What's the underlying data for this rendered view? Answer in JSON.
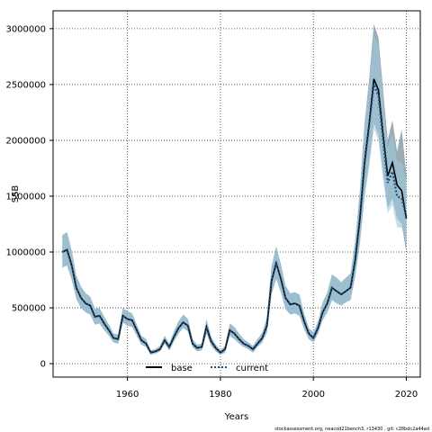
{
  "chart_data": {
    "type": "area",
    "title": "",
    "xlabel": "Years",
    "ylabel": "SSB",
    "xlim": [
      1944,
      2023
    ],
    "ylim": [
      -120000,
      3160000
    ],
    "x_ticks": [
      1960,
      1980,
      2000,
      2020
    ],
    "y_ticks": [
      0,
      500000,
      1000000,
      1500000,
      2000000,
      2500000,
      3000000
    ],
    "grid": true,
    "legend_position": "bottom-center",
    "colors": {
      "band_base": "#8a9ea8",
      "band_current": "#9ecae1",
      "line_base": "#000000",
      "line_current": "#1f4e79"
    },
    "series": [
      {
        "name": "base",
        "style": "solid",
        "x": [
          1946,
          1947,
          1948,
          1949,
          1950,
          1951,
          1952,
          1953,
          1954,
          1955,
          1956,
          1957,
          1958,
          1959,
          1960,
          1961,
          1962,
          1963,
          1964,
          1965,
          1966,
          1967,
          1968,
          1969,
          1970,
          1971,
          1972,
          1973,
          1974,
          1975,
          1976,
          1977,
          1978,
          1979,
          1980,
          1981,
          1982,
          1983,
          1984,
          1985,
          1986,
          1987,
          1988,
          1989,
          1990,
          1991,
          1992,
          1993,
          1994,
          1995,
          1996,
          1997,
          1998,
          1999,
          2000,
          2001,
          2002,
          2003,
          2004,
          2005,
          2006,
          2007,
          2008,
          2009,
          2010,
          2011,
          2012,
          2013,
          2014,
          2015,
          2016,
          2017,
          2018,
          2019,
          2020
        ],
        "values": [
          1000000,
          1020000,
          880000,
          680000,
          590000,
          540000,
          520000,
          420000,
          430000,
          360000,
          300000,
          230000,
          220000,
          430000,
          400000,
          390000,
          300000,
          210000,
          180000,
          100000,
          110000,
          130000,
          210000,
          150000,
          240000,
          320000,
          370000,
          340000,
          180000,
          140000,
          150000,
          330000,
          200000,
          140000,
          100000,
          130000,
          300000,
          270000,
          220000,
          180000,
          160000,
          130000,
          180000,
          230000,
          340000,
          740000,
          900000,
          760000,
          590000,
          530000,
          540000,
          520000,
          380000,
          270000,
          230000,
          320000,
          460000,
          540000,
          680000,
          650000,
          620000,
          650000,
          680000,
          930000,
          1300000,
          1800000,
          2150000,
          2550000,
          2450000,
          2050000,
          1680000,
          1800000,
          1600000,
          1550000,
          1300000
        ],
        "lower": [
          860000,
          880000,
          750000,
          580000,
          500000,
          460000,
          440000,
          350000,
          360000,
          300000,
          250000,
          190000,
          180000,
          370000,
          340000,
          330000,
          250000,
          170000,
          150000,
          80000,
          90000,
          110000,
          180000,
          120000,
          200000,
          270000,
          320000,
          290000,
          150000,
          110000,
          120000,
          270000,
          160000,
          110000,
          80000,
          100000,
          250000,
          220000,
          180000,
          150000,
          130000,
          100000,
          150000,
          190000,
          280000,
          620000,
          760000,
          640000,
          490000,
          440000,
          450000,
          430000,
          310000,
          220000,
          190000,
          270000,
          390000,
          460000,
          570000,
          540000,
          520000,
          550000,
          570000,
          780000,
          1080000,
          1500000,
          1800000,
          2150000,
          2050000,
          1700000,
          1390000,
          1480000,
          1300000,
          1250000,
          1000000
        ],
        "upper": [
          1150000,
          1180000,
          1010000,
          790000,
          690000,
          630000,
          600000,
          490000,
          500000,
          420000,
          350000,
          270000,
          260000,
          500000,
          470000,
          450000,
          350000,
          250000,
          220000,
          120000,
          130000,
          160000,
          250000,
          180000,
          290000,
          380000,
          440000,
          400000,
          220000,
          170000,
          180000,
          400000,
          240000,
          170000,
          120000,
          160000,
          360000,
          330000,
          270000,
          220000,
          190000,
          160000,
          220000,
          280000,
          410000,
          870000,
          1050000,
          890000,
          700000,
          630000,
          640000,
          620000,
          450000,
          320000,
          280000,
          380000,
          550000,
          640000,
          800000,
          770000,
          730000,
          770000,
          810000,
          1100000,
          1550000,
          2150000,
          2550000,
          3040000,
          2920000,
          2450000,
          2000000,
          2180000,
          1900000,
          2100000,
          1700000
        ]
      },
      {
        "name": "current",
        "style": "dotted",
        "x": [
          1946,
          1947,
          1948,
          1949,
          1950,
          1951,
          1952,
          1953,
          1954,
          1955,
          1956,
          1957,
          1958,
          1959,
          1960,
          1961,
          1962,
          1963,
          1964,
          1965,
          1966,
          1967,
          1968,
          1969,
          1970,
          1971,
          1972,
          1973,
          1974,
          1975,
          1976,
          1977,
          1978,
          1979,
          1980,
          1981,
          1982,
          1983,
          1984,
          1985,
          1986,
          1987,
          1988,
          1989,
          1990,
          1991,
          1992,
          1993,
          1994,
          1995,
          1996,
          1997,
          1998,
          1999,
          2000,
          2001,
          2002,
          2003,
          2004,
          2005,
          2006,
          2007,
          2008,
          2009,
          2010,
          2011,
          2012,
          2013,
          2014,
          2015,
          2016,
          2017,
          2018,
          2019,
          2020
        ],
        "values": [
          1000000,
          1020000,
          880000,
          680000,
          590000,
          540000,
          520000,
          420000,
          430000,
          360000,
          300000,
          230000,
          220000,
          430000,
          400000,
          390000,
          300000,
          210000,
          180000,
          100000,
          110000,
          130000,
          210000,
          150000,
          240000,
          320000,
          370000,
          340000,
          180000,
          140000,
          150000,
          330000,
          200000,
          140000,
          100000,
          130000,
          300000,
          270000,
          220000,
          180000,
          160000,
          130000,
          180000,
          230000,
          340000,
          740000,
          900000,
          760000,
          590000,
          530000,
          540000,
          520000,
          380000,
          270000,
          230000,
          320000,
          460000,
          540000,
          680000,
          650000,
          620000,
          650000,
          680000,
          930000,
          1300000,
          1780000,
          2130000,
          2500000,
          2400000,
          2000000,
          1620000,
          1720000,
          1500000,
          1480000,
          1320000
        ],
        "lower": [
          860000,
          880000,
          750000,
          580000,
          500000,
          460000,
          440000,
          350000,
          360000,
          300000,
          250000,
          190000,
          180000,
          370000,
          340000,
          330000,
          250000,
          170000,
          150000,
          80000,
          90000,
          110000,
          180000,
          120000,
          200000,
          270000,
          320000,
          290000,
          150000,
          110000,
          120000,
          270000,
          160000,
          110000,
          80000,
          100000,
          250000,
          220000,
          180000,
          150000,
          130000,
          100000,
          150000,
          190000,
          280000,
          620000,
          760000,
          640000,
          490000,
          440000,
          450000,
          430000,
          310000,
          220000,
          190000,
          270000,
          390000,
          460000,
          570000,
          540000,
          520000,
          550000,
          570000,
          780000,
          1080000,
          1480000,
          1760000,
          2100000,
          2000000,
          1650000,
          1350000,
          1420000,
          1220000,
          1220000,
          1060000
        ],
        "upper": [
          1150000,
          1180000,
          1010000,
          790000,
          690000,
          630000,
          600000,
          490000,
          500000,
          420000,
          350000,
          270000,
          260000,
          500000,
          470000,
          450000,
          350000,
          250000,
          220000,
          120000,
          130000,
          160000,
          250000,
          180000,
          290000,
          380000,
          440000,
          400000,
          220000,
          170000,
          180000,
          400000,
          240000,
          170000,
          120000,
          160000,
          360000,
          330000,
          270000,
          220000,
          190000,
          160000,
          220000,
          280000,
          410000,
          870000,
          1050000,
          890000,
          700000,
          630000,
          640000,
          620000,
          450000,
          320000,
          280000,
          380000,
          550000,
          640000,
          800000,
          770000,
          730000,
          770000,
          810000,
          1100000,
          1550000,
          2130000,
          2500000,
          2950000,
          2850000,
          2380000,
          1930000,
          2060000,
          1820000,
          1800000,
          1620000
        ]
      }
    ],
    "footnote": "stockassessment.org, neacod21bench3, r13430 , git: c28bdc2a44ad"
  }
}
